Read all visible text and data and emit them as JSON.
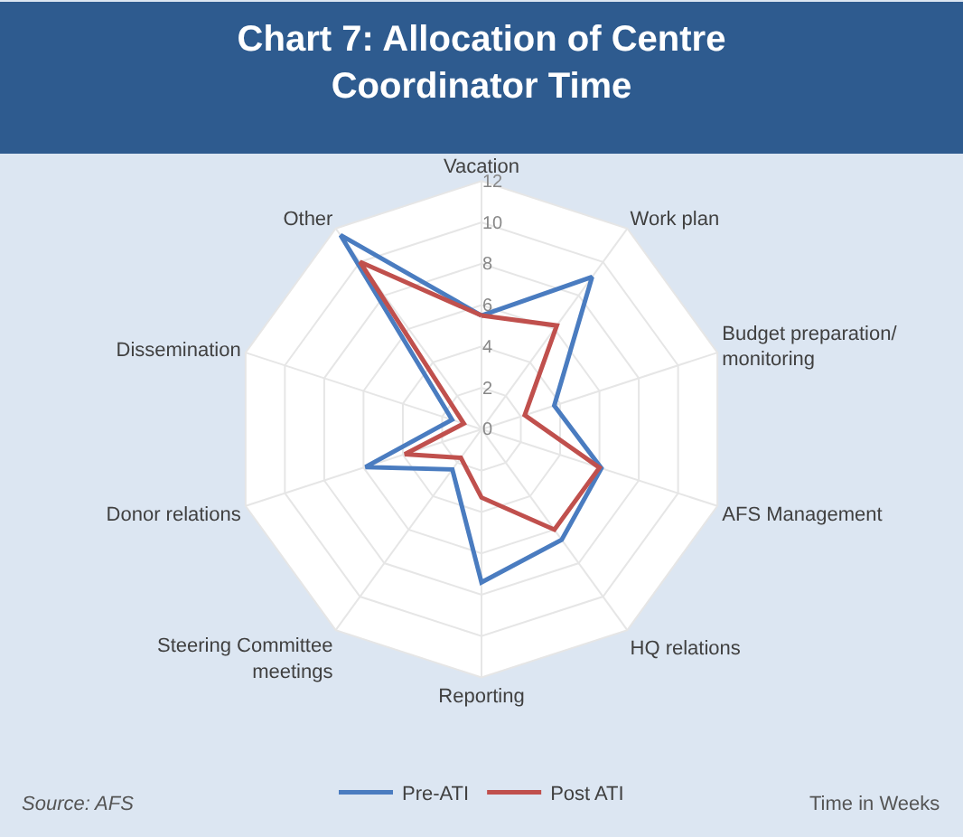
{
  "chart_data": {
    "type": "radar",
    "title": "Chart 7: Allocation of Centre Coordinator Time",
    "categories": [
      "Vacation",
      "Work plan",
      "Budget preparation/ monitoring",
      "AFS Management",
      "HQ relations",
      "Reporting",
      "Steering Committee meetings",
      "Donor relations",
      "Dissemination",
      "Other"
    ],
    "series": [
      {
        "name": "Pre-ATI",
        "color": "#4a7cc0",
        "values": [
          5.5,
          9.1,
          3.7,
          6.1,
          6.6,
          7.4,
          2.4,
          5.9,
          1.5,
          11.6
        ]
      },
      {
        "name": "Post ATI",
        "color": "#c0504d",
        "values": [
          5.5,
          6.2,
          2.2,
          6.0,
          6.0,
          3.3,
          1.7,
          3.9,
          0.9,
          10.0
        ]
      }
    ],
    "ylim": [
      0,
      12
    ],
    "yticks": [
      0,
      2,
      4,
      6,
      8,
      10,
      12
    ],
    "grid": true,
    "legend": "bottom",
    "marker": "none",
    "line_style": "solid",
    "annotations": [
      "Source: AFS",
      "Time in Weeks"
    ]
  }
}
